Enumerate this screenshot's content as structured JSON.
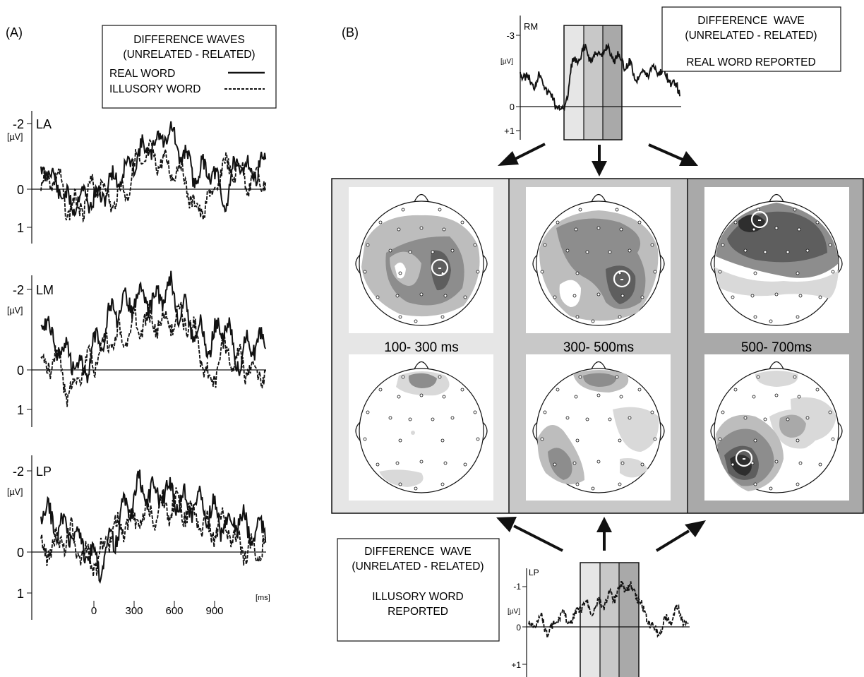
{
  "panel_a": {
    "label": "(A)",
    "legend": {
      "title_line1": "DIFFERENCE WAVES",
      "title_line2": "(UNRELATED - RELATED)",
      "series": [
        {
          "name": "REAL WORD",
          "style": "solid"
        },
        {
          "name": "ILLUSORY WORD",
          "style": "dashed"
        }
      ]
    },
    "charts": [
      {
        "electrode": "LA",
        "top_tick": "-2",
        "unit": "[µV]",
        "zero_tick": "0",
        "bottom_tick": "1"
      },
      {
        "electrode": "LM",
        "top_tick": "-2",
        "unit": "[µV]",
        "zero_tick": "0",
        "bottom_tick": "1"
      },
      {
        "electrode": "LP",
        "top_tick": "-2",
        "unit": "[µV]",
        "zero_tick": "0",
        "bottom_tick": "1"
      }
    ],
    "x_ticks": [
      "0",
      "300",
      "600",
      "900"
    ],
    "x_unit": "[ms]"
  },
  "panel_b": {
    "label": "(B)",
    "top_chart": {
      "electrode": "RM",
      "top_tick": "-3",
      "unit": "[µV]",
      "zero_tick": "0",
      "bottom_tick": "+1"
    },
    "top_legend": {
      "line1": "DIFFERENCE  WAVE",
      "line2": "(UNRELATED - RELATED)",
      "line3": "REAL WORD REPORTED"
    },
    "bottom_chart": {
      "electrode": "LP",
      "top_tick": "-1",
      "unit": "[µV]",
      "zero_tick": "0",
      "bottom_tick": "+1"
    },
    "bottom_legend": {
      "line1": "DIFFERENCE  WAVE",
      "line2": "(UNRELATED - RELATED)",
      "line3": "ILLUSORY WORD",
      "line4": "REPORTED"
    },
    "windows": [
      {
        "label": "100- 300 ms",
        "shade": "#e6e6e6"
      },
      {
        "label": "300- 500ms",
        "shade": "#c8c8c8"
      },
      {
        "label": "500- 700ms",
        "shade": "#a9a9a9"
      }
    ],
    "negativity_marker": "-"
  },
  "chart_data": [
    {
      "type": "line",
      "title": "LA",
      "xlabel": "[ms]",
      "ylabel": "[µV]",
      "x_ticks": [
        0,
        300,
        600,
        900
      ],
      "xlim": [
        -400,
        1200
      ],
      "ylim": [
        1.5,
        -2.3
      ],
      "y_ticks": [
        -2,
        0,
        1
      ],
      "series": [
        {
          "name": "REAL WORD",
          "x": [
            -400,
            -300,
            -200,
            -100,
            0,
            100,
            200,
            300,
            400,
            500,
            600,
            700,
            800,
            900,
            1000,
            1100,
            1200
          ],
          "values": [
            -0.8,
            -0.3,
            0.3,
            0.1,
            0.2,
            -0.3,
            -0.6,
            -1.1,
            -1.3,
            -1.7,
            -1.1,
            -0.5,
            -0.7,
            0.2,
            -0.8,
            -0.6,
            -0.8
          ]
        },
        {
          "name": "ILLUSORY WORD",
          "x": [
            -400,
            -300,
            -200,
            -100,
            0,
            100,
            200,
            300,
            400,
            500,
            600,
            700,
            800,
            900,
            1000,
            1100,
            1200
          ],
          "values": [
            -0.2,
            -0.5,
            0.4,
            0.3,
            -0.3,
            0.2,
            -0.1,
            -0.9,
            -1.0,
            -0.7,
            -0.6,
            0.5,
            0.2,
            -0.7,
            -0.6,
            -0.3,
            -0.4
          ]
        }
      ]
    },
    {
      "type": "line",
      "title": "LM",
      "xlabel": "[ms]",
      "ylabel": "[µV]",
      "x_ticks": [
        0,
        300,
        600,
        900
      ],
      "xlim": [
        -400,
        1200
      ],
      "ylim": [
        1.5,
        -2.3
      ],
      "y_ticks": [
        -2,
        0,
        1
      ],
      "series": [
        {
          "name": "REAL WORD",
          "x": [
            -400,
            -300,
            -200,
            -100,
            0,
            100,
            200,
            300,
            400,
            500,
            600,
            700,
            800,
            900,
            1000,
            1100,
            1200
          ],
          "values": [
            -1.4,
            -0.6,
            -0.3,
            0.1,
            -0.6,
            -1.3,
            -1.5,
            -1.8,
            -1.6,
            -2.0,
            -1.4,
            -0.9,
            -0.6,
            -1.1,
            -0.2,
            -0.6,
            -0.6
          ]
        },
        {
          "name": "ILLUSORY WORD",
          "x": [
            -400,
            -300,
            -200,
            -100,
            0,
            100,
            200,
            300,
            400,
            500,
            600,
            700,
            800,
            900,
            1000,
            1100,
            1200
          ],
          "values": [
            0.1,
            -0.3,
            0.6,
            0.0,
            -0.2,
            -0.7,
            -0.8,
            -1.1,
            -1.1,
            -1.1,
            -1.3,
            -0.8,
            0.4,
            -0.4,
            -0.2,
            0.1,
            0.1
          ]
        }
      ]
    },
    {
      "type": "line",
      "title": "LP",
      "xlabel": "[ms]",
      "ylabel": "[µV]",
      "x_ticks": [
        0,
        300,
        600,
        900
      ],
      "xlim": [
        -400,
        1200
      ],
      "ylim": [
        1.5,
        -2.3
      ],
      "y_ticks": [
        -2,
        0,
        1
      ],
      "series": [
        {
          "name": "REAL WORD",
          "x": [
            -400,
            -300,
            -200,
            -100,
            0,
            100,
            200,
            300,
            400,
            500,
            600,
            700,
            800,
            900,
            1000,
            1100,
            1200
          ],
          "values": [
            -0.9,
            -0.6,
            -0.4,
            -0.1,
            0.4,
            -0.2,
            -0.9,
            -1.4,
            -1.3,
            -1.4,
            -1.1,
            -1.1,
            -0.9,
            -0.6,
            -0.7,
            -0.4,
            -0.5
          ]
        },
        {
          "name": "ILLUSORY WORD",
          "x": [
            -400,
            -300,
            -200,
            -100,
            0,
            100,
            200,
            300,
            400,
            500,
            600,
            700,
            800,
            900,
            1000,
            1100,
            1200
          ],
          "values": [
            0.1,
            -0.1,
            -0.3,
            0.2,
            0.3,
            -0.4,
            -0.6,
            -0.7,
            -0.9,
            -1.0,
            -1.0,
            -0.7,
            -0.4,
            -0.6,
            -0.1,
            0.1,
            -0.2
          ]
        }
      ]
    },
    {
      "type": "line",
      "title": "RM",
      "ylabel": "[µV]",
      "ylim": [
        1.2,
        -3.5
      ],
      "y_ticks": [
        -3,
        0,
        1
      ],
      "highlight_windows": [
        "100- 300 ms",
        "300- 500ms",
        "500- 700ms"
      ],
      "series": [
        {
          "name": "REAL WORD",
          "x": [
            -400,
            -300,
            -200,
            -100,
            0,
            100,
            200,
            300,
            400,
            500,
            600,
            700,
            800,
            900,
            1000,
            1100
          ],
          "values": [
            -1.5,
            -1.0,
            -1.2,
            -0.3,
            0.2,
            -1.8,
            -2.3,
            -2.1,
            -2.4,
            -2.1,
            -1.8,
            -1.3,
            -1.5,
            -1.6,
            -1.2,
            -0.6
          ]
        }
      ]
    },
    {
      "type": "line",
      "title": "LP",
      "ylabel": "[µV]",
      "ylim": [
        1.3,
        -1.7
      ],
      "y_ticks": [
        -1,
        0,
        1
      ],
      "highlight_windows": [
        "100- 300 ms",
        "300- 500ms",
        "500- 700ms"
      ],
      "series": [
        {
          "name": "ILLUSORY WORD",
          "x": [
            -400,
            -300,
            -200,
            -100,
            0,
            100,
            200,
            300,
            400,
            500,
            600,
            700,
            800,
            900,
            1000,
            1100
          ],
          "values": [
            0.1,
            -0.2,
            0.2,
            -0.3,
            -0.1,
            -0.6,
            -0.5,
            -0.7,
            -0.9,
            -1.2,
            -1.0,
            -0.3,
            0.2,
            -0.1,
            -0.4,
            0.0
          ]
        }
      ]
    }
  ]
}
